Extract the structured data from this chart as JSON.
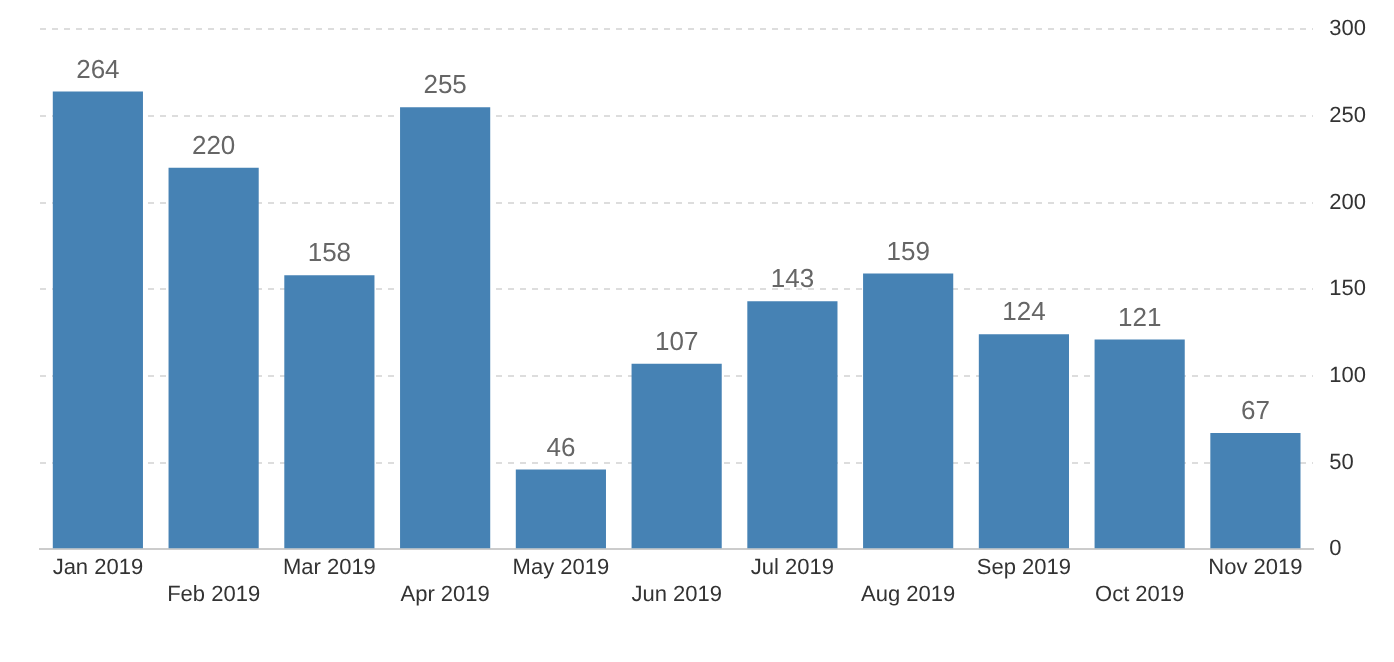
{
  "chart_data": {
    "type": "bar",
    "categories": [
      "Jan 2019",
      "Feb 2019",
      "Mar 2019",
      "Apr 2019",
      "May 2019",
      "Jun 2019",
      "Jul 2019",
      "Aug 2019",
      "Sep 2019",
      "Oct 2019",
      "Nov 2019"
    ],
    "values": [
      264,
      220,
      158,
      255,
      46,
      107,
      143,
      159,
      124,
      121,
      67
    ],
    "color": "#4682b4",
    "ylim": [
      0,
      300
    ],
    "yticks": [
      0,
      50,
      100,
      150,
      200,
      250,
      300
    ],
    "grid": "y",
    "data_labels": true
  }
}
